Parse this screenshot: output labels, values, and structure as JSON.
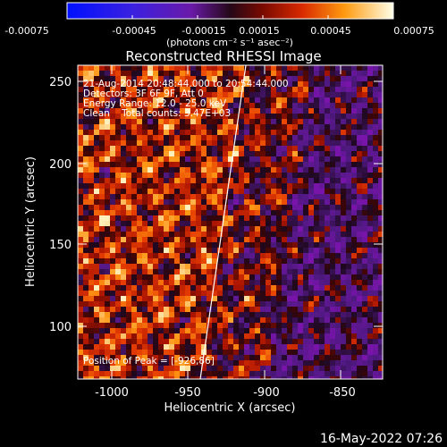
{
  "colorbar": {
    "tick_labels": [
      "-0.00075",
      "-0.00045",
      "-0.00015",
      "0.00015",
      "0.00045",
      "0.00075"
    ],
    "unit_label": "(photons cm⁻² s⁻¹ asec⁻²)"
  },
  "title": "Reconstructed RHESSI Image",
  "annotations": {
    "time_range": "21-Aug-2014 20:48:44.000 to 20:54:44.000",
    "detectors": "Detectors: 3F 6F 9F, Att 0",
    "energy_range": "Energy Range: 12.0 - 25.0 keV",
    "method_counts": "Clean    Total counts: 3.47E+03",
    "peak_position": "Position of Peak = [-926,86]"
  },
  "axes": {
    "x_label": "Heliocentric X (arcsec)",
    "y_label": "Heliocentric Y (arcsec)",
    "x_ticks": [
      "-1000",
      "-950",
      "-900",
      "-850"
    ],
    "y_ticks": [
      "250",
      "200",
      "150",
      "100"
    ]
  },
  "footer": {
    "timestamp": "16-May-2022 07:26"
  },
  "colors": {
    "background": "#000000",
    "text": "#ffffff"
  }
}
